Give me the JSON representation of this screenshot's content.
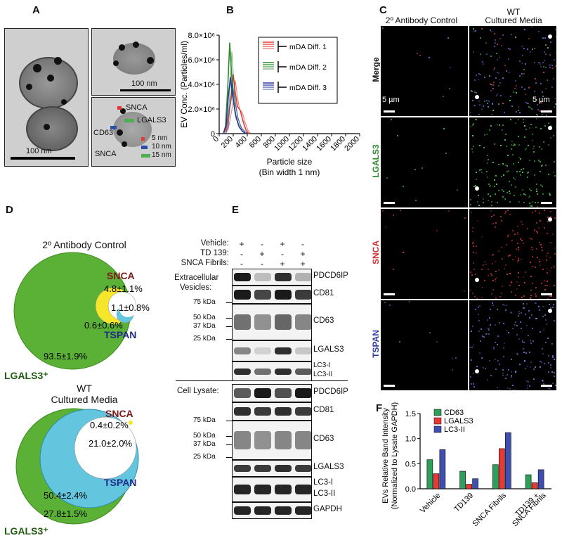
{
  "panels": {
    "a": "A",
    "b": "B",
    "c": "C",
    "d": "D",
    "e": "E",
    "f": "F"
  },
  "panel_a": {
    "scale_left": "100 nm",
    "scale_right": "100 nm",
    "labels": [
      "SNCA",
      "LGALS3",
      "CD63",
      "SNCA"
    ],
    "size_legend": [
      {
        "label": "5 nm",
        "color": "#e53935"
      },
      {
        "label": "10 nm",
        "color": "#2c4fa8"
      },
      {
        "label": "15 nm",
        "color": "#4caf50"
      }
    ]
  },
  "panel_b": {
    "chart_data": {
      "type": "line",
      "ylabel": "EV Conc. (Particles/ml)",
      "xlabel_line1": "Particle size",
      "xlabel_line2": "(Bin width 1 nm)",
      "xlim": [
        0,
        2000
      ],
      "ylim": [
        0,
        8000000
      ],
      "xticks": [
        0,
        200,
        400,
        600,
        800,
        1000,
        1200,
        1400,
        1600,
        1800,
        2000
      ],
      "yticks": [
        {
          "v": 0,
          "t": "0"
        },
        {
          "v": 2000000,
          "t": "2.0×10⁶"
        },
        {
          "v": 4000000,
          "t": "4.0×10⁶"
        },
        {
          "v": 6000000,
          "t": "6.0×10⁶"
        },
        {
          "v": 8000000,
          "t": "8.0×10⁶"
        }
      ],
      "series": [
        {
          "name": "mDA Diff. 1",
          "color": "#e53935",
          "points": [
            [
              60,
              0
            ],
            [
              100,
              400000
            ],
            [
              140,
              1800000
            ],
            [
              170,
              2800000
            ],
            [
              200,
              4800000
            ],
            [
              230,
              3300000
            ],
            [
              260,
              2200000
            ],
            [
              300,
              1900000
            ],
            [
              340,
              1000000
            ],
            [
              380,
              300000
            ],
            [
              420,
              0
            ]
          ]
        },
        {
          "name": "mDA Diff. 2",
          "color": "#2e8b2e",
          "points": [
            [
              60,
              0
            ],
            [
              90,
              600000
            ],
            [
              120,
              3500000
            ],
            [
              150,
              7400000
            ],
            [
              175,
              5000000
            ],
            [
              200,
              3000000
            ],
            [
              240,
              1300000
            ],
            [
              290,
              500000
            ],
            [
              340,
              150000
            ],
            [
              380,
              0
            ]
          ]
        },
        {
          "name": "mDA Diff. 3",
          "color": "#2b3a9b",
          "points": [
            [
              60,
              0
            ],
            [
              100,
              700000
            ],
            [
              130,
              3000000
            ],
            [
              160,
              4600000
            ],
            [
              190,
              3100000
            ],
            [
              230,
              1600000
            ],
            [
              280,
              600000
            ],
            [
              330,
              200000
            ],
            [
              380,
              0
            ]
          ]
        }
      ]
    },
    "legend": [
      "mDA Diff. 1",
      "mDA Diff. 2",
      "mDA Diff. 3"
    ]
  },
  "panel_c": {
    "col1": "2º Antibody Control",
    "col2_line1": "WT",
    "col2_line2": "Cultured Media",
    "rows": [
      {
        "label": "Merge",
        "color": "#111111"
      },
      {
        "label": "LGALS3",
        "color": "#2e8b2e"
      },
      {
        "label": "SNCA",
        "color": "#d32f2f"
      },
      {
        "label": "TSPAN",
        "color": "#2b3a9b"
      }
    ],
    "scale_left": "5 µm",
    "scale_right": "5 µm"
  },
  "panel_d": {
    "top_title": "2º Antibody Control",
    "top": {
      "snca": "SNCA",
      "tspan": "TSPAN",
      "lgals3": "LGALS3⁺",
      "v1": "4.8±1.1%",
      "v2": "1.1±0.8%",
      "v3": "0.6±0.6%",
      "v4": "93.5±1.9%"
    },
    "bottom_title_line1": "WT",
    "bottom_title_line2": "Cultured Media",
    "bottom": {
      "snca": "SNCA",
      "tspan": "TSPAN",
      "lgals3": "LGALS3⁺",
      "v1": "0.4±0.2%",
      "v2": "21.0±2.0%",
      "v3": "50.4±2.4%",
      "v4": "27.8±1.5%"
    },
    "colors": {
      "green": "#5bb135",
      "cyan": "#63c6de",
      "yellow": "#f5e62a"
    }
  },
  "panel_e": {
    "conditions": [
      {
        "label": "Vehicle:",
        "signs": [
          "+",
          "-",
          "+",
          "-"
        ]
      },
      {
        "label": "TD 139:",
        "signs": [
          "-",
          "+",
          "-",
          "+"
        ]
      },
      {
        "label": "SNCA Fibrils:",
        "signs": [
          "-",
          "-",
          "+",
          "+"
        ]
      }
    ],
    "ev_label_line1": "Extracellular",
    "ev_label_line2": "Vesicles:",
    "lysate_label": "Cell Lysate:",
    "markers": [
      "75 kDa",
      "50 kDa",
      "37 kDa",
      "25 kDa"
    ],
    "ev_blots": [
      "PDCD6IP",
      "CD81",
      "CD63",
      "LGALS3"
    ],
    "lc3_labels": [
      "LC3-I",
      "LC3-II"
    ],
    "lysate_blots": [
      "PDCD6IP",
      "CD81",
      "CD63",
      "LGALS3"
    ],
    "gapdh": "GAPDH"
  },
  "panel_f": {
    "chart_data": {
      "type": "bar",
      "categories": [
        "Vehicle",
        "TD139",
        "SNCA Fibrils",
        "TD139 + SNCA Fibrils"
      ],
      "ylabel_line1": "EVs Relative Band Intensity",
      "ylabel_line2": "(Normalized to Lysate GAPDH)",
      "ylim": [
        0,
        1.5
      ],
      "yticks": [
        {
          "v": 0,
          "t": "0.0"
        },
        {
          "v": 0.5,
          "t": "0.5"
        },
        {
          "v": 1.0,
          "t": "1.0"
        },
        {
          "v": 1.5,
          "t": "1.5"
        }
      ],
      "series": [
        {
          "name": "CD63",
          "color": "#2e9e5b",
          "values": [
            0.58,
            0.35,
            0.48,
            0.28
          ]
        },
        {
          "name": "LGALS3",
          "color": "#e53935",
          "values": [
            0.3,
            0.09,
            0.8,
            0.12
          ]
        },
        {
          "name": "LC3-II",
          "color": "#3f4fb0",
          "values": [
            0.78,
            0.2,
            1.12,
            0.38
          ]
        }
      ]
    },
    "cat_label_line1": [
      "Vehicle",
      "TD139",
      "SNCA Fibrils",
      "TD139 +"
    ],
    "cat_label_line2": [
      "",
      "",
      "",
      "SNCA Fibrils"
    ]
  }
}
